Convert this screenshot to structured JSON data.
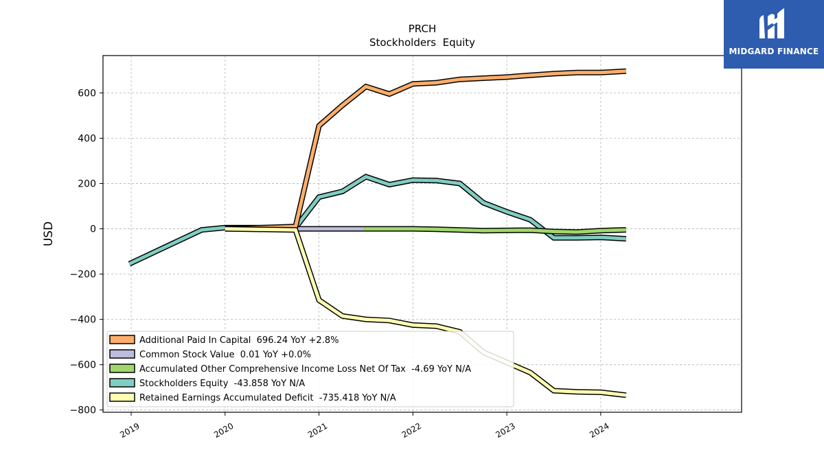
{
  "brand": {
    "name": "MIDGARD FINANCE",
    "bg_color": "#2e5caf"
  },
  "chart_data": {
    "type": "line",
    "title": "PRCH",
    "subtitle": "Stockholders  Equity",
    "ylabel": "USD",
    "xlabel": "",
    "ylim": [
      -810,
      765
    ],
    "xlim": [
      2018.7,
      2025.5
    ],
    "x_ticks": [
      2019,
      2020,
      2021,
      2022,
      2023,
      2024
    ],
    "x_tick_labels": [
      "2019",
      "2020",
      "2021",
      "2022",
      "2023",
      "2024"
    ],
    "y_ticks": [
      -800,
      -600,
      -400,
      -200,
      0,
      200,
      400,
      600
    ],
    "y_tick_labels": [
      "−800",
      "−600",
      "−400",
      "−200",
      "0",
      "200",
      "400",
      "600"
    ],
    "grid": true,
    "legend_position": "lower-left",
    "series": [
      {
        "name": "Additional Paid In Capital",
        "legend": "Additional Paid In Capital  696.24 YoY +2.8%",
        "color": "#fdae6b",
        "x": [
          2020.0,
          2020.75,
          2021.0,
          2021.25,
          2021.5,
          2021.75,
          2022.0,
          2022.25,
          2022.5,
          2022.75,
          2023.0,
          2023.25,
          2023.5,
          2023.75,
          2024.0,
          2024.27
        ],
        "y": [
          0,
          10,
          455,
          545,
          628,
          595,
          640,
          645,
          660,
          665,
          670,
          678,
          685,
          690,
          690,
          696
        ]
      },
      {
        "name": "Common Stock Value",
        "legend": "Common Stock Value  0.01 YoY +0.0%",
        "color": "#bcbddc",
        "x": [
          2020.0,
          2020.75,
          2021.0,
          2021.25,
          2021.48
        ],
        "y": [
          0.01,
          0.01,
          0.01,
          0.01,
          0.01
        ]
      },
      {
        "name": "Accumulated Other Comprehensive Income Loss Net Of Tax",
        "legend": "Accumulated Other Comprehensive Income Loss Net Of Tax  -4.69 YoY N/A",
        "color": "#a1d76a",
        "x": [
          2021.48,
          2021.75,
          2022.0,
          2022.25,
          2022.5,
          2022.75,
          2023.0,
          2023.25,
          2023.5,
          2023.75,
          2024.0,
          2024.27
        ],
        "y": [
          0,
          0,
          0,
          -2,
          -5,
          -8,
          -7,
          -6,
          -12,
          -14,
          -8,
          -4.69
        ]
      },
      {
        "name": "Stockholders Equity",
        "legend": "Stockholders Equity  -43.858 YoY N/A",
        "color": "#80cdc1",
        "x": [
          2018.98,
          2019.75,
          2020.0,
          2020.75,
          2021.0,
          2021.25,
          2021.5,
          2021.75,
          2022.0,
          2022.25,
          2022.5,
          2022.75,
          2023.0,
          2023.25,
          2023.5,
          2023.75,
          2024.0,
          2024.27
        ],
        "y": [
          -155,
          -5,
          5,
          5,
          140,
          165,
          230,
          195,
          215,
          213,
          200,
          115,
          75,
          40,
          -40,
          -40,
          -38,
          -44
        ]
      },
      {
        "name": "Retained Earnings Accumulated Deficit",
        "legend": "Retained Earnings Accumulated Deficit  -735.418 YoY N/A",
        "color": "#ffffb3",
        "x": [
          2020.0,
          2020.75,
          2021.0,
          2021.25,
          2021.5,
          2021.75,
          2022.0,
          2022.25,
          2022.5,
          2022.75,
          2023.0,
          2023.25,
          2023.5,
          2023.75,
          2024.0,
          2024.27
        ],
        "y": [
          0,
          -5,
          -315,
          -385,
          -400,
          -405,
          -425,
          -430,
          -455,
          -545,
          -590,
          -635,
          -715,
          -720,
          -722,
          -735
        ]
      }
    ]
  }
}
